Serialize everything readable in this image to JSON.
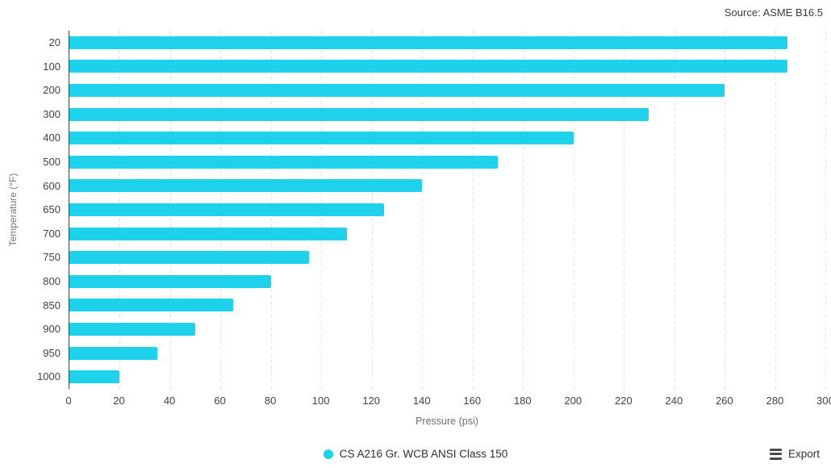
{
  "source_text": "Source: ASME B16.5",
  "chart_data": {
    "type": "bar",
    "orientation": "horizontal",
    "categories": [
      "20",
      "100",
      "200",
      "300",
      "400",
      "500",
      "600",
      "650",
      "700",
      "750",
      "800",
      "850",
      "900",
      "950",
      "1000"
    ],
    "values": [
      285,
      285,
      260,
      230,
      200,
      170,
      140,
      125,
      110,
      95,
      80,
      65,
      50,
      35,
      20
    ],
    "series_name": "CS A216 Gr. WCB ANSI Class 150",
    "xlabel": "Pressure (psi)",
    "ylabel": "Temperature (°F)",
    "xlim": [
      0,
      300
    ],
    "xticks": [
      0,
      20,
      40,
      60,
      80,
      100,
      120,
      140,
      160,
      180,
      200,
      220,
      240,
      260,
      280,
      300
    ],
    "grid": "vertical-dashed",
    "legend_position": "bottom-center",
    "bar_color": "#1fd2ec"
  },
  "legend": {
    "marker_icon": "circle-marker-icon",
    "label": "CS A216 Gr. WCB ANSI Class 150",
    "marker_color": "#1fd2ec"
  },
  "export": {
    "icon": "hamburger-menu-icon",
    "label": "Export"
  },
  "colors": {
    "bar": "#1fd2ec",
    "axis_line": "#404040",
    "gridline": "#e2e4e7",
    "tick_text": "#3f4346",
    "axis_title_text": "#6e6e6e"
  }
}
